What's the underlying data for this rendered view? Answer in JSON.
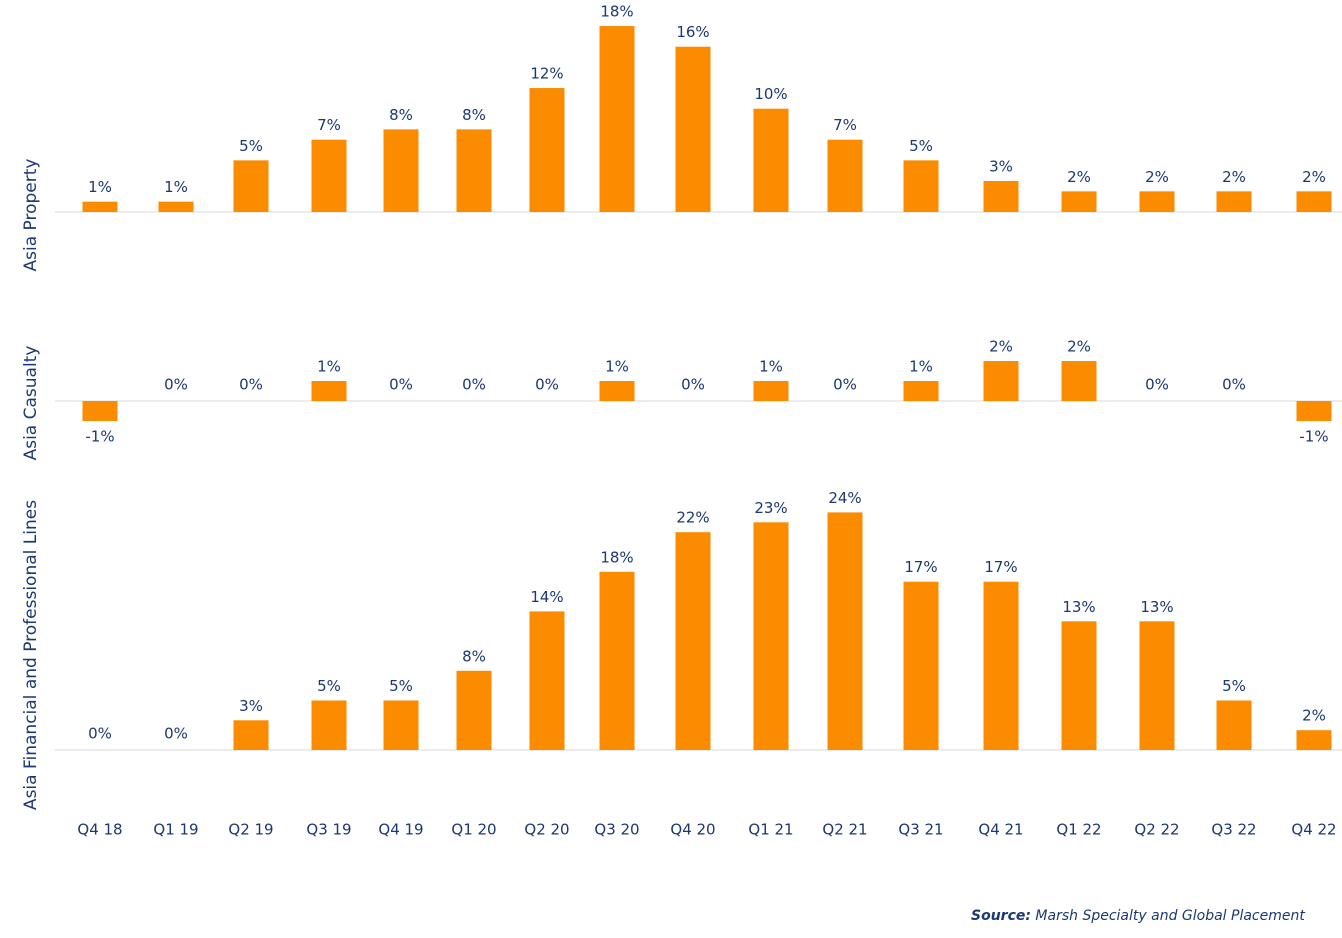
{
  "chart_data": {
    "type": "bar",
    "categories": [
      "Q4 18",
      "Q1 19",
      "Q2 19",
      "Q3 19",
      "Q4 19",
      "Q1 20",
      "Q2 20",
      "Q3 20",
      "Q4 20",
      "Q1 21",
      "Q2 21",
      "Q3 21",
      "Q4 21",
      "Q1 22",
      "Q2 22",
      "Q3 22",
      "Q4 22"
    ],
    "series": [
      {
        "name": "Asia Property",
        "color": "#fb8c00",
        "values": [
          1,
          1,
          5,
          7,
          8,
          8,
          12,
          18,
          16,
          10,
          7,
          5,
          3,
          2,
          2,
          2,
          2
        ],
        "value_labels": [
          "1%",
          "1%",
          "5%",
          "7%",
          "8%",
          "8%",
          "12%",
          "18%",
          "16%",
          "10%",
          "7%",
          "5%",
          "3%",
          "2%",
          "2%",
          "2%",
          "2%"
        ]
      },
      {
        "name": "Asia Casualty",
        "color": "#fb8c00",
        "values": [
          -1,
          0,
          0,
          1,
          0,
          0,
          0,
          1,
          0,
          1,
          0,
          1,
          2,
          2,
          0,
          0,
          -1
        ],
        "value_labels": [
          "-1%",
          "0%",
          "0%",
          "1%",
          "0%",
          "0%",
          "0%",
          "1%",
          "0%",
          "1%",
          "0%",
          "1%",
          "2%",
          "2%",
          "0%",
          "0%",
          "-1%"
        ]
      },
      {
        "name": "Asia Financial and Professional Lines",
        "color": "#fb8c00",
        "values": [
          0,
          0,
          3,
          5,
          5,
          8,
          14,
          18,
          22,
          23,
          24,
          17,
          17,
          13,
          13,
          5,
          2
        ],
        "value_labels": [
          "0%",
          "0%",
          "3%",
          "5%",
          "5%",
          "8%",
          "14%",
          "18%",
          "22%",
          "23%",
          "24%",
          "17%",
          "17%",
          "13%",
          "13%",
          "5%",
          "2%"
        ]
      }
    ],
    "source_label": "Source:",
    "source": "Marsh Specialty and Global Placement"
  }
}
